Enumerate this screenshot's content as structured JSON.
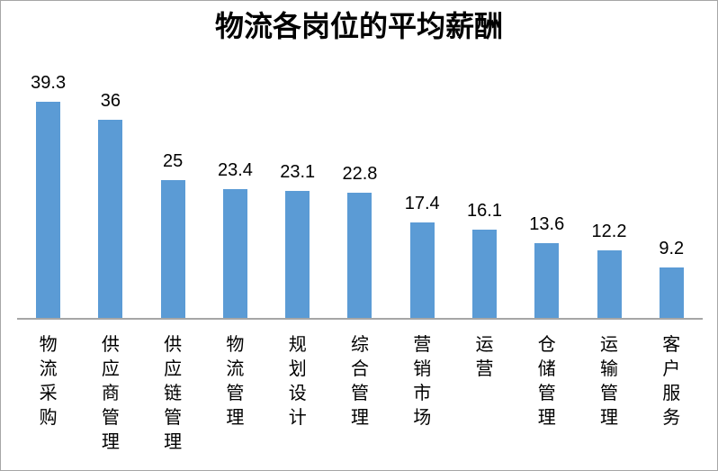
{
  "window": {
    "background": "#ffffff",
    "border_color": "#a6a6a6"
  },
  "chart_data": {
    "type": "bar",
    "title": "物流各岗位的平均薪酬",
    "categories": [
      "物流采购",
      "供应商管理",
      "供应链管理",
      "物流管理",
      "规划设计",
      "综合管理",
      "营销市场",
      "运营",
      "仓储管理",
      "运输管理",
      "客户服务"
    ],
    "values": [
      39.3,
      36,
      25,
      23.4,
      23.1,
      22.8,
      17.4,
      16.1,
      13.6,
      12.2,
      9.2
    ],
    "value_labels": [
      "39.3",
      "36",
      "25",
      "23.4",
      "23.1",
      "22.8",
      "17.4",
      "16.1",
      "13.6",
      "12.2",
      "9.2"
    ],
    "xlabel": "",
    "ylabel": "",
    "ylim": [
      0,
      40
    ],
    "grid": false,
    "legend_position": "none",
    "data_labels_shown": true,
    "bar_color": "#5b9bd5",
    "axis_line_color": "#a6a6a6",
    "text_color": "#000000",
    "category_text_orientation": "vertical-stacked"
  }
}
